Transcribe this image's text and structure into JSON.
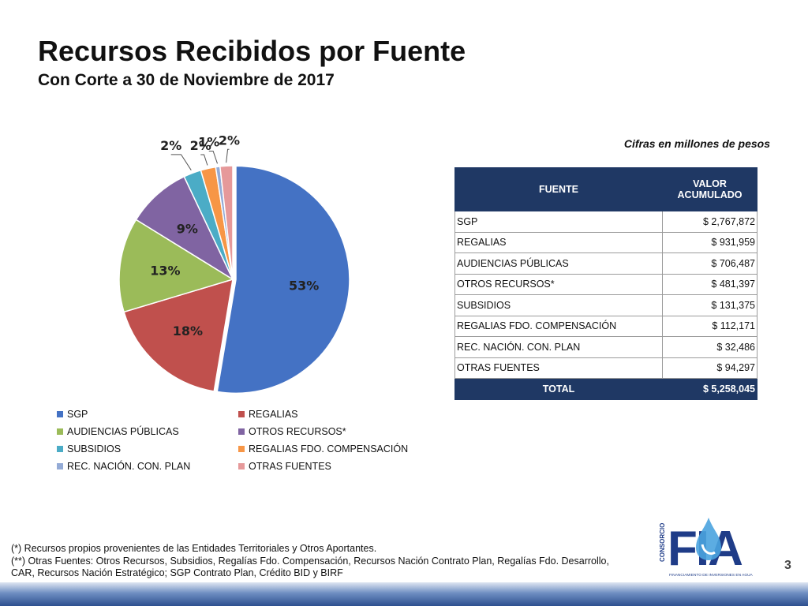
{
  "header": {
    "title": "Recursos Recibidos por Fuente",
    "subtitle": "Con Corte a 30 de Noviembre de 2017"
  },
  "note": "Cifras en millones de pesos",
  "chart_data": {
    "type": "pie",
    "categories": [
      "SGP",
      "REGALIAS",
      "AUDIENCIAS PÚBLICAS",
      "OTROS RECURSOS*",
      "SUBSIDIOS",
      "REGALIAS FDO. COMPENSACIÓN",
      "REC. NACIÓN.  CON. PLAN",
      "OTRAS FUENTES"
    ],
    "values": [
      2767872,
      931959,
      706487,
      481397,
      131375,
      112171,
      32486,
      94297
    ],
    "labels": [
      "53%",
      "18%",
      "13%",
      "9%",
      "2%",
      "2%",
      "1%",
      "2%"
    ],
    "colors": [
      "#4472c4",
      "#c0504d",
      "#9bbb59",
      "#8064a2",
      "#4bacc6",
      "#f79646",
      "#94abd6",
      "#e6999a"
    ],
    "legend_position": "bottom"
  },
  "table": {
    "header_fuente": "FUENTE",
    "header_valor": "VALOR ACUMULADO",
    "rows": [
      {
        "fuente": "SGP",
        "valor": "$ 2,767,872"
      },
      {
        "fuente": "REGALIAS",
        "valor": "$ 931,959"
      },
      {
        "fuente": "AUDIENCIAS PÚBLICAS",
        "valor": "$ 706,487"
      },
      {
        "fuente": "OTROS RECURSOS*",
        "valor": "$ 481,397"
      },
      {
        "fuente": "SUBSIDIOS",
        "valor": "$ 131,375"
      },
      {
        "fuente": "REGALIAS FDO. COMPENSACIÓN",
        "valor": "$ 112,171"
      },
      {
        "fuente": "REC. NACIÓN.  CON. PLAN",
        "valor": "$ 32,486"
      },
      {
        "fuente": "OTRAS FUENTES",
        "valor": "$ 94,297"
      }
    ],
    "total_label": "TOTAL",
    "total_value": "$ 5,258,045"
  },
  "footnotes": [
    "(*) Recursos propios provenientes de  las Entidades Territoriales y Otros Aportantes.",
    "(**) Otras Fuentes: Otros Recursos, Subsidios, Regalías Fdo. Compensación, Recursos Nación Contrato Plan, Regalías Fdo. Desarrollo,",
    "CAR, Recursos Nación Estratégico; SGP Contrato Plan, Crédito BID y BIRF"
  ],
  "logo": {
    "vertical_text": "CONSORCIO",
    "brand": "FIA",
    "tagline": "FINANCIAMIENTO DE INVERSIONES EN AGUA"
  },
  "page_number": "3"
}
